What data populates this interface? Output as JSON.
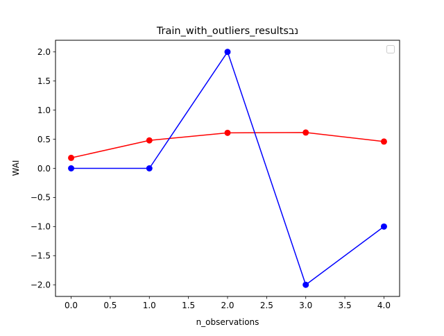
{
  "chart_data": {
    "type": "line",
    "title": "Train_with_outliers_resultsנב",
    "xlabel": "n_observations",
    "ylabel": "WAI",
    "xlim": [
      -0.2,
      4.2
    ],
    "ylim": [
      -2.2,
      2.2
    ],
    "x": [
      0,
      1,
      2,
      3,
      4
    ],
    "x_ticks": [
      0.0,
      0.5,
      1.0,
      1.5,
      2.0,
      2.5,
      3.0,
      3.5,
      4.0
    ],
    "x_tick_labels": [
      "0.0",
      "0.5",
      "1.0",
      "1.5",
      "2.0",
      "2.5",
      "3.0",
      "3.5",
      "4.0"
    ],
    "y_ticks": [
      -2.0,
      -1.5,
      -1.0,
      -0.5,
      0.0,
      0.5,
      1.0,
      1.5,
      2.0
    ],
    "y_tick_labels": [
      "−2.0",
      "−1.5",
      "−1.0",
      "−0.5",
      "0.0",
      "0.5",
      "1.0",
      "1.5",
      "2.0"
    ],
    "grid": false,
    "legend": {
      "placement": "upper-right",
      "entries": []
    },
    "series": [
      {
        "color": "#ff0000",
        "marker": "circle",
        "values": [
          0.18,
          0.48,
          0.61,
          0.615,
          0.46
        ]
      },
      {
        "color": "#0000ff",
        "marker": "circle",
        "values": [
          0,
          0,
          2,
          -2,
          -1
        ]
      }
    ]
  }
}
